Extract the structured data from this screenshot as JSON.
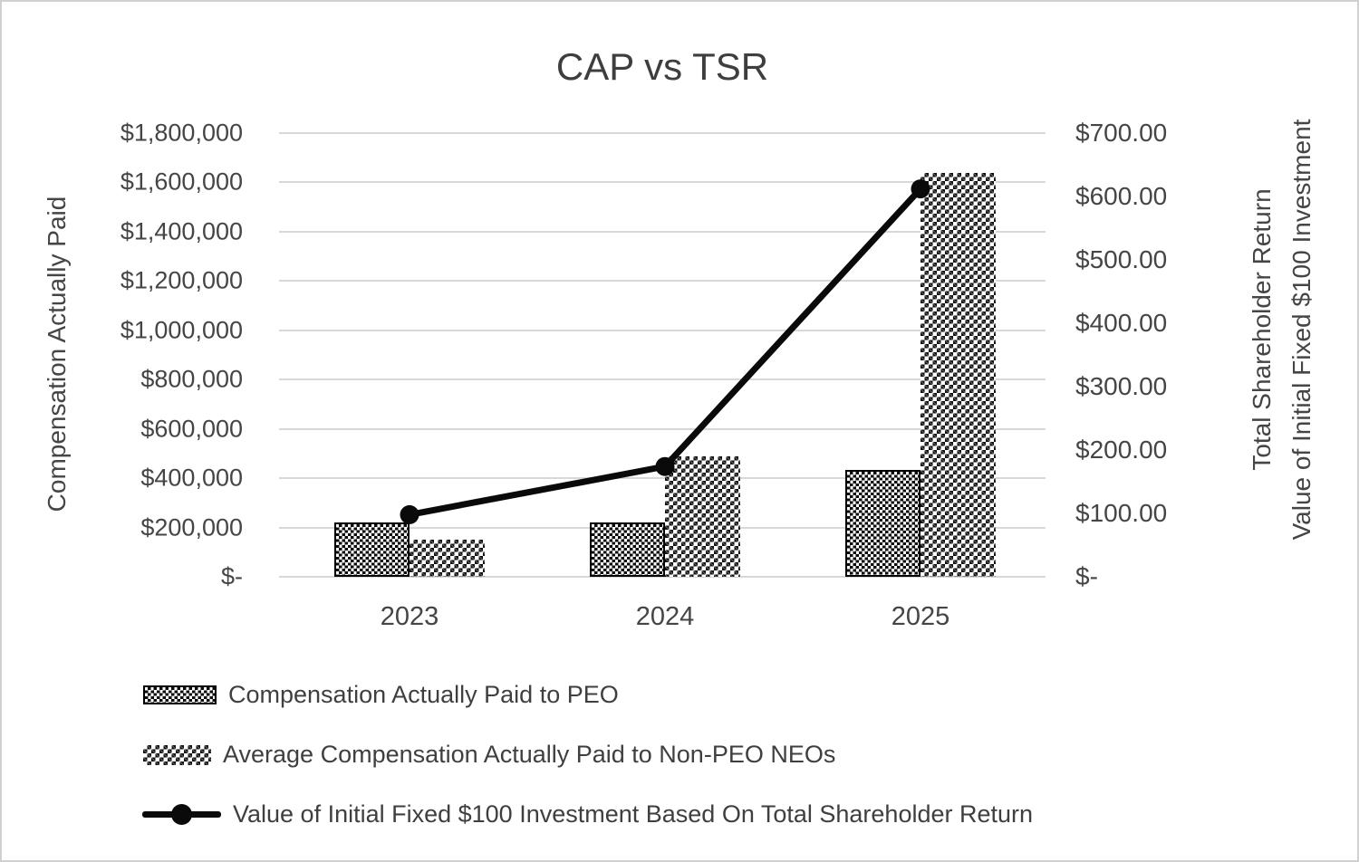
{
  "chart": {
    "title": "CAP vs TSR",
    "left_axis": {
      "title": "Compensation Actually Paid",
      "tick_labels": [
        "$1,800,000",
        "$1,600,000",
        "$1,400,000",
        "$1,200,000",
        "$1,000,000",
        "$800,000",
        "$600,000",
        "$400,000",
        "$200,000",
        "$-"
      ]
    },
    "right_axis": {
      "title_lines": [
        "Total Shareholder Return",
        "Value of Initial Fixed $100 Investment"
      ],
      "tick_labels": [
        "$700.00",
        "$600.00",
        "$500.00",
        "$400.00",
        "$300.00",
        "$200.00",
        "$100.00",
        "$-"
      ]
    },
    "x_axis": {
      "category_labels": [
        "2023",
        "2024",
        "2025"
      ]
    },
    "legend": [
      {
        "label": "Compensation Actually Paid to PEO",
        "swatch": "dense-checker-pattern"
      },
      {
        "label": "Average Compensation Actually Paid to Non-PEO NEOs",
        "swatch": "light-checker-pattern"
      },
      {
        "label": "Value of Initial Fixed $100 Investment Based On Total Shareholder Return",
        "swatch": "black-line-with-round-marker"
      }
    ],
    "colors": {
      "series_pattern_ink": "#000000",
      "line_series": "#0a0a0a",
      "gridline": "#d8d8d8",
      "text": "#454545",
      "frame_border": "#cfd1d1"
    }
  },
  "chart_data": {
    "type": "combo",
    "title": "CAP vs TSR",
    "categories": [
      "2023",
      "2024",
      "2025"
    ],
    "series": [
      {
        "name": "Compensation Actually Paid to PEO",
        "chart_type": "bar",
        "y_axis": "left",
        "values": [
          220000,
          220000,
          435000
        ]
      },
      {
        "name": "Average Compensation Actually Paid to Non-PEO NEOs",
        "chart_type": "bar",
        "y_axis": "left",
        "values": [
          150000,
          490000,
          1640000
        ]
      },
      {
        "name": "Value of Initial Fixed $100 Investment Based On Total Shareholder Return",
        "chart_type": "line",
        "y_axis": "right",
        "values": [
          98,
          174,
          612
        ]
      }
    ],
    "left_axis": {
      "label": "Compensation Actually Paid",
      "ylim": [
        0,
        1800000
      ],
      "tick_step": 200000
    },
    "right_axis": {
      "label": "Total Shareholder Return / Value of Initial Fixed $100 Investment",
      "ylim": [
        0,
        700
      ],
      "tick_step": 100
    },
    "grid": true,
    "legend_position": "bottom-left"
  }
}
